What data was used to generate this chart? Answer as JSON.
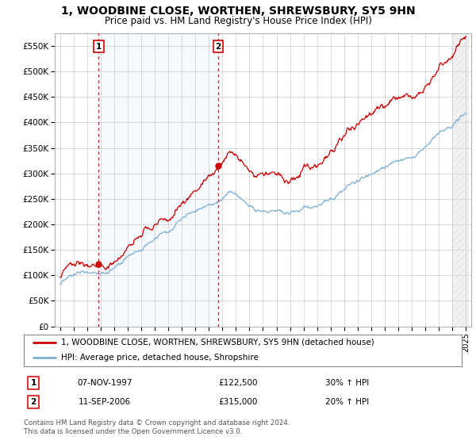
{
  "title": "1, WOODBINE CLOSE, WORTHEN, SHREWSBURY, SY5 9HN",
  "subtitle": "Price paid vs. HM Land Registry's House Price Index (HPI)",
  "ylim": [
    0,
    575000
  ],
  "yticks": [
    0,
    50000,
    100000,
    150000,
    200000,
    250000,
    300000,
    350000,
    400000,
    450000,
    500000,
    550000
  ],
  "ytick_labels": [
    "£0",
    "£50K",
    "£100K",
    "£150K",
    "£200K",
    "£250K",
    "£300K",
    "£350K",
    "£400K",
    "£450K",
    "£500K",
    "£550K"
  ],
  "x_start_year": 1995,
  "x_end_year": 2025,
  "hpi_line_color": "#7bafd4",
  "price_line_color": "#cc0000",
  "purchase1_year": 1997.85,
  "purchase1_price": 122500,
  "purchase2_year": 2006.7,
  "purchase2_price": 315000,
  "vline_color": "#cc0000",
  "dot_color": "#cc0000",
  "shade_color": "#ddeeff",
  "legend_label1": "1, WOODBINE CLOSE, WORTHEN, SHREWSBURY, SY5 9HN (detached house)",
  "legend_label2": "HPI: Average price, detached house, Shropshire",
  "table_row1": [
    "1",
    "07-NOV-1997",
    "£122,500",
    "30% ↑ HPI"
  ],
  "table_row2": [
    "2",
    "11-SEP-2006",
    "£315,000",
    "20% ↑ HPI"
  ],
  "footer": "Contains HM Land Registry data © Crown copyright and database right 2024.\nThis data is licensed under the Open Government Licence v3.0.",
  "bg_color": "#ffffff",
  "grid_color": "#cccccc",
  "title_fontsize": 10,
  "subtitle_fontsize": 8.5,
  "tick_fontsize": 7.5
}
